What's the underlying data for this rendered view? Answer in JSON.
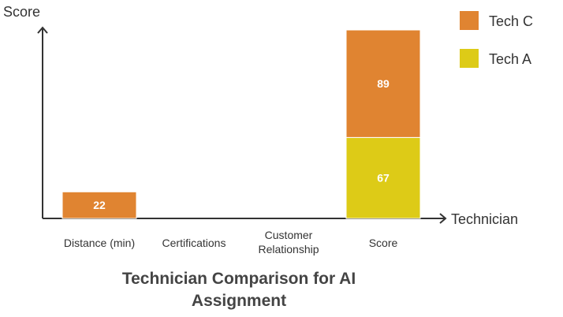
{
  "chart_data": {
    "type": "bar",
    "stacked": true,
    "title": "Technician Comparison for AI Assignment",
    "xlabel": "Technician",
    "ylabel": "Score",
    "categories": [
      "Distance (min)",
      "Certifications",
      [
        "Customer",
        "Relationship"
      ],
      "Score"
    ],
    "series": [
      {
        "name": "Tech A",
        "color": "#DDCB17",
        "values": [
          0,
          0,
          0,
          67
        ]
      },
      {
        "name": "Tech C",
        "color": "#E08431",
        "values": [
          22,
          0,
          0,
          89
        ]
      }
    ],
    "legend_order": [
      "Tech C",
      "Tech A"
    ],
    "legend_position": "top-right",
    "grid": false,
    "ylim": [
      0,
      160
    ]
  }
}
